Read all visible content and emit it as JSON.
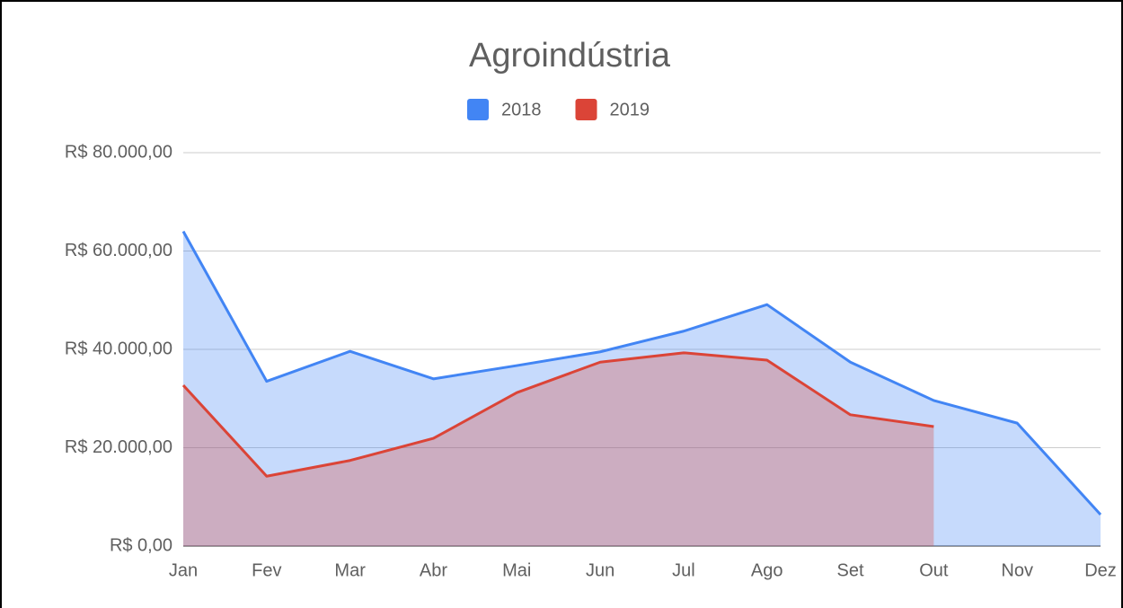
{
  "chart_data": {
    "type": "area",
    "title": "Agroindústria",
    "categories": [
      "Jan",
      "Fev",
      "Mar",
      "Abr",
      "Mai",
      "Jun",
      "Jul",
      "Ago",
      "Set",
      "Out",
      "Nov",
      "Dez"
    ],
    "series": [
      {
        "name": "2018",
        "color": "#4285f4",
        "values": [
          64000,
          33500,
          39600,
          34000,
          36700,
          39500,
          43700,
          49100,
          37400,
          29600,
          25000,
          6400
        ]
      },
      {
        "name": "2019",
        "color": "#db4437",
        "values": [
          32700,
          14200,
          17400,
          21900,
          31200,
          37400,
          39300,
          37800,
          26700,
          24300,
          null,
          null
        ]
      }
    ],
    "ylim": [
      0,
      80000
    ],
    "yticks": [
      {
        "value": 0,
        "label": "R$ 0,00"
      },
      {
        "value": 20000,
        "label": "R$ 20.000,00"
      },
      {
        "value": 40000,
        "label": "R$ 40.000,00"
      },
      {
        "value": 60000,
        "label": "R$ 60.000,00"
      },
      {
        "value": 80000,
        "label": "R$ 80.000,00"
      }
    ],
    "grid": true,
    "legend": "top"
  }
}
